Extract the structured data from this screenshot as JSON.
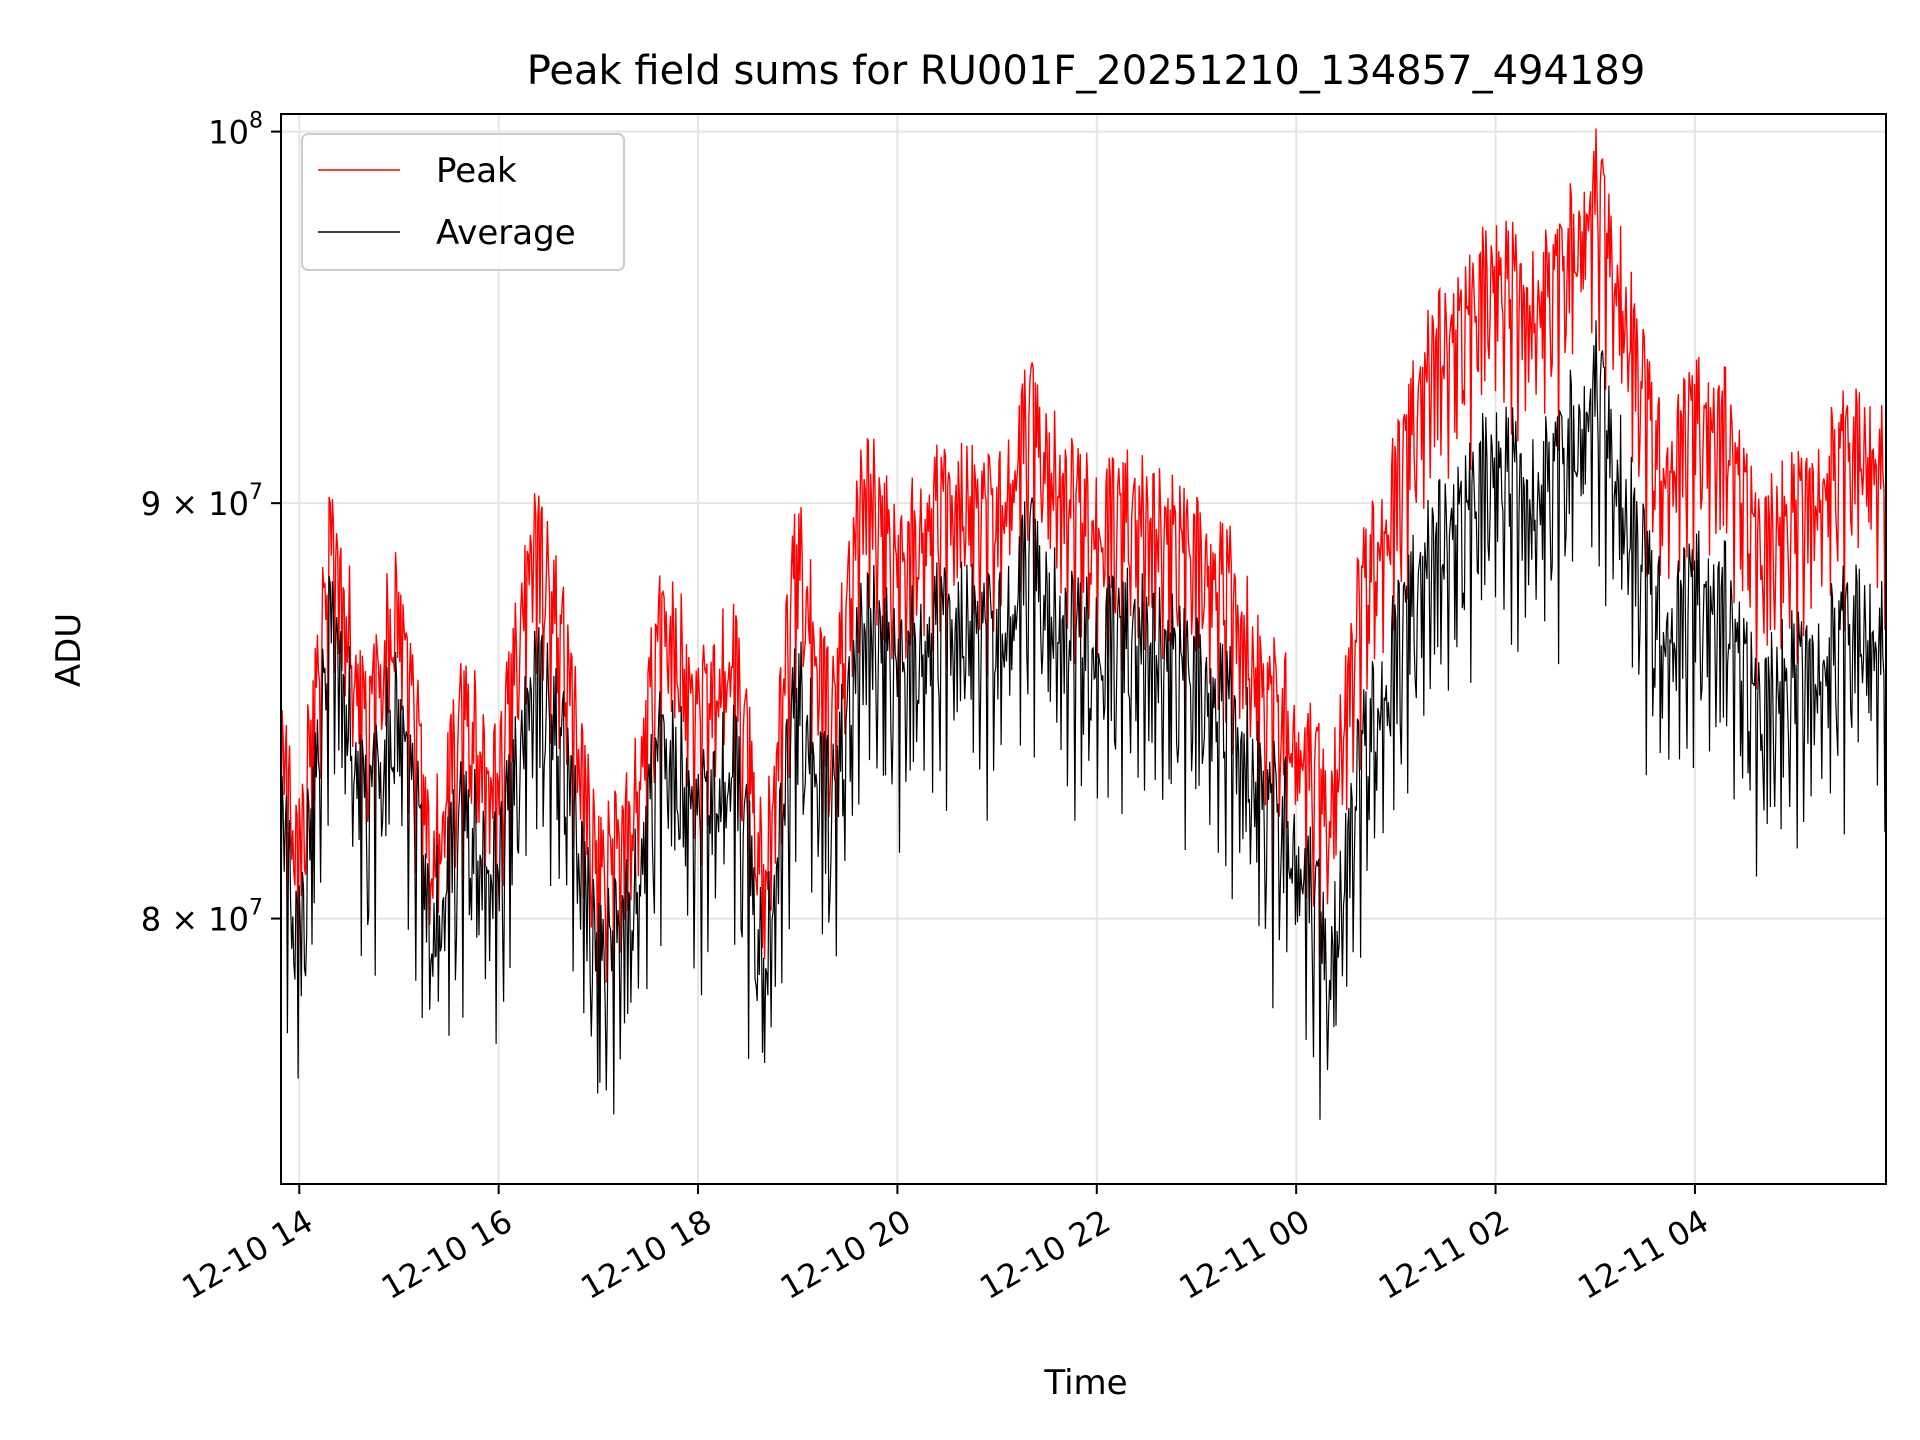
{
  "chart_data": {
    "type": "line",
    "title": "Peak field sums for RU001F_20251210_134857_494189",
    "xlabel": "Time",
    "ylabel": "ADU",
    "yscale": "log",
    "ylim": [
      74200000,
      100500000
    ],
    "xlim": [
      "2025-12-10 13:49",
      "2025-12-11 05:55"
    ],
    "x_ticks": [
      "12-10 14",
      "12-10 16",
      "12-10 18",
      "12-10 20",
      "12-10 22",
      "12-11 00",
      "12-11 02",
      "12-11 04"
    ],
    "y_ticks": [
      {
        "value": 80000000,
        "mantissa": "8",
        "exponent": "7"
      },
      {
        "value": 90000000,
        "mantissa": "9",
        "exponent": "7"
      },
      {
        "value": 100000000,
        "base": "10",
        "exponent": "8"
      }
    ],
    "grid": true,
    "legend_position": "upper-left",
    "series": [
      {
        "name": "Peak",
        "color": "#ff0000",
        "x": [
          "2025-12-10 13:49",
          "2025-12-10 14:00",
          "2025-12-10 14:20",
          "2025-12-10 14:40",
          "2025-12-10 15:00",
          "2025-12-10 15:20",
          "2025-12-10 15:40",
          "2025-12-10 16:00",
          "2025-12-10 16:20",
          "2025-12-10 16:40",
          "2025-12-10 17:00",
          "2025-12-10 17:20",
          "2025-12-10 17:40",
          "2025-12-10 18:00",
          "2025-12-10 18:20",
          "2025-12-10 18:40",
          "2025-12-10 19:00",
          "2025-12-10 19:20",
          "2025-12-10 19:40",
          "2025-12-10 20:00",
          "2025-12-10 20:20",
          "2025-12-10 20:40",
          "2025-12-10 21:00",
          "2025-12-10 21:20",
          "2025-12-10 21:40",
          "2025-12-10 22:00",
          "2025-12-10 22:20",
          "2025-12-10 22:40",
          "2025-12-10 23:00",
          "2025-12-10 23:20",
          "2025-12-10 23:40",
          "2025-12-11 00:00",
          "2025-12-11 00:20",
          "2025-12-11 00:40",
          "2025-12-11 01:00",
          "2025-12-11 01:20",
          "2025-12-11 01:40",
          "2025-12-11 02:00",
          "2025-12-11 02:20",
          "2025-12-11 02:40",
          "2025-12-11 03:00",
          "2025-12-11 03:20",
          "2025-12-11 03:40",
          "2025-12-11 04:00",
          "2025-12-11 04:20",
          "2025-12-11 04:40",
          "2025-12-11 05:00",
          "2025-12-11 05:20",
          "2025-12-11 05:40",
          "2025-12-11 05:55"
        ],
        "values": [
          85500000,
          83000000,
          91000000,
          86000000,
          89500000,
          83000000,
          86500000,
          84500000,
          91000000,
          88000000,
          82500000,
          84000000,
          89000000,
          86500000,
          88000000,
          82500000,
          90500000,
          86000000,
          92500000,
          90000000,
          91500000,
          92000000,
          91500000,
          94000000,
          92000000,
          91000000,
          91500000,
          91000000,
          90500000,
          89500000,
          87000000,
          86000000,
          84000000,
          89500000,
          92000000,
          95500000,
          96500000,
          98000000,
          97000000,
          98000000,
          100300000,
          96500000,
          92500000,
          94000000,
          93500000,
          90500000,
          91500000,
          92500000,
          93500000,
          92500000
        ]
      },
      {
        "name": "Average",
        "color": "#000000",
        "x": [
          "2025-12-10 13:49",
          "2025-12-10 14:00",
          "2025-12-10 14:20",
          "2025-12-10 14:40",
          "2025-12-10 15:00",
          "2025-12-10 15:20",
          "2025-12-10 15:40",
          "2025-12-10 16:00",
          "2025-12-10 16:20",
          "2025-12-10 16:40",
          "2025-12-10 17:00",
          "2025-12-10 17:20",
          "2025-12-10 17:40",
          "2025-12-10 18:00",
          "2025-12-10 18:20",
          "2025-12-10 18:40",
          "2025-12-10 19:00",
          "2025-12-10 19:20",
          "2025-12-10 19:40",
          "2025-12-10 20:00",
          "2025-12-10 20:20",
          "2025-12-10 20:40",
          "2025-12-10 21:00",
          "2025-12-10 21:20",
          "2025-12-10 21:40",
          "2025-12-10 22:00",
          "2025-12-10 22:20",
          "2025-12-10 22:40",
          "2025-12-10 23:00",
          "2025-12-10 23:20",
          "2025-12-10 23:40",
          "2025-12-11 00:00",
          "2025-12-11 00:20",
          "2025-12-11 00:40",
          "2025-12-11 01:00",
          "2025-12-11 01:20",
          "2025-12-11 01:40",
          "2025-12-11 02:00",
          "2025-12-11 02:20",
          "2025-12-11 02:40",
          "2025-12-11 03:00",
          "2025-12-11 03:20",
          "2025-12-11 03:40",
          "2025-12-11 04:00",
          "2025-12-11 04:20",
          "2025-12-11 04:40",
          "2025-12-11 05:00",
          "2025-12-11 05:20",
          "2025-12-11 05:40",
          "2025-12-11 05:55"
        ],
        "values": [
          84000000,
          81000000,
          89000000,
          84000000,
          87000000,
          81500000,
          84000000,
          82500000,
          87500000,
          85500000,
          80500000,
          82000000,
          86000000,
          84000000,
          85500000,
          80500000,
          87000000,
          84000000,
          89000000,
          87500000,
          88500000,
          89000000,
          88500000,
          90500000,
          88500000,
          88000000,
          88500000,
          88000000,
          87500000,
          86500000,
          84500000,
          83500000,
          80500000,
          85500000,
          88000000,
          90500000,
          91500000,
          93000000,
          92000000,
          93000000,
          95000000,
          91500000,
          88500000,
          89500000,
          89000000,
          86500000,
          87500000,
          88000000,
          89000000,
          88000000
        ]
      }
    ]
  }
}
